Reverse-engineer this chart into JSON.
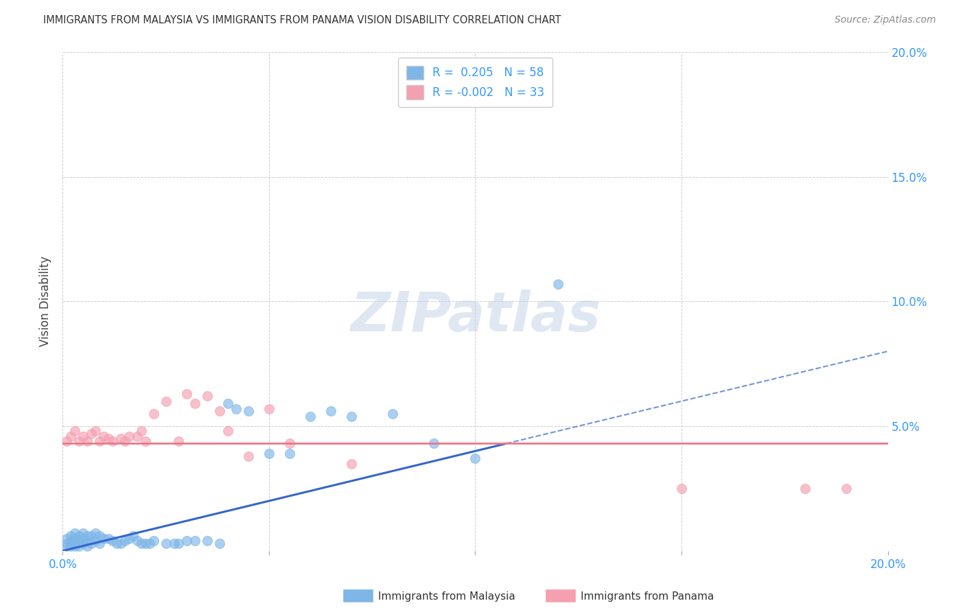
{
  "title": "IMMIGRANTS FROM MALAYSIA VS IMMIGRANTS FROM PANAMA VISION DISABILITY CORRELATION CHART",
  "source": "Source: ZipAtlas.com",
  "ylabel": "Vision Disability",
  "xlim": [
    0.0,
    0.2
  ],
  "ylim": [
    0.0,
    0.2
  ],
  "malaysia_color": "#7EB6E8",
  "panama_color": "#F4A0B0",
  "malaysia_line_color": "#3366CC",
  "panama_line_color": "#E8788A",
  "malaysia_R": 0.205,
  "malaysia_N": 58,
  "panama_R": -0.002,
  "panama_N": 33,
  "watermark_text": "ZIPatlas",
  "legend_label_1": "Immigrants from Malaysia",
  "legend_label_2": "Immigrants from Panama",
  "malaysia_line_x0": 0.0,
  "malaysia_line_y0": 0.0,
  "malaysia_line_x1": 0.2,
  "malaysia_line_y1": 0.08,
  "panama_line_y": 0.043,
  "malaysia_scatter_x": [
    0.001,
    0.001,
    0.001,
    0.002,
    0.002,
    0.002,
    0.002,
    0.003,
    0.003,
    0.003,
    0.003,
    0.004,
    0.004,
    0.004,
    0.005,
    0.005,
    0.005,
    0.006,
    0.006,
    0.006,
    0.007,
    0.007,
    0.008,
    0.008,
    0.009,
    0.009,
    0.01,
    0.011,
    0.012,
    0.013,
    0.014,
    0.015,
    0.016,
    0.017,
    0.018,
    0.019,
    0.02,
    0.021,
    0.022,
    0.025,
    0.027,
    0.028,
    0.03,
    0.032,
    0.035,
    0.038,
    0.04,
    0.042,
    0.045,
    0.05,
    0.055,
    0.06,
    0.065,
    0.07,
    0.08,
    0.09,
    0.1,
    0.12
  ],
  "malaysia_scatter_y": [
    0.005,
    0.003,
    0.002,
    0.006,
    0.004,
    0.003,
    0.002,
    0.007,
    0.005,
    0.003,
    0.002,
    0.006,
    0.004,
    0.002,
    0.007,
    0.005,
    0.003,
    0.006,
    0.004,
    0.002,
    0.006,
    0.003,
    0.007,
    0.004,
    0.006,
    0.003,
    0.005,
    0.005,
    0.004,
    0.003,
    0.003,
    0.004,
    0.005,
    0.006,
    0.004,
    0.003,
    0.003,
    0.003,
    0.004,
    0.003,
    0.003,
    0.003,
    0.004,
    0.004,
    0.004,
    0.003,
    0.059,
    0.057,
    0.056,
    0.039,
    0.039,
    0.054,
    0.056,
    0.054,
    0.055,
    0.043,
    0.037,
    0.107
  ],
  "panama_scatter_x": [
    0.001,
    0.002,
    0.003,
    0.004,
    0.005,
    0.006,
    0.007,
    0.008,
    0.009,
    0.01,
    0.011,
    0.012,
    0.014,
    0.015,
    0.016,
    0.018,
    0.019,
    0.02,
    0.022,
    0.025,
    0.028,
    0.03,
    0.032,
    0.035,
    0.038,
    0.04,
    0.045,
    0.05,
    0.055,
    0.07,
    0.15,
    0.18,
    0.19
  ],
  "panama_scatter_y": [
    0.044,
    0.046,
    0.048,
    0.044,
    0.046,
    0.044,
    0.047,
    0.048,
    0.044,
    0.046,
    0.045,
    0.044,
    0.045,
    0.044,
    0.046,
    0.046,
    0.048,
    0.044,
    0.055,
    0.06,
    0.044,
    0.063,
    0.059,
    0.062,
    0.056,
    0.048,
    0.038,
    0.057,
    0.043,
    0.035,
    0.025,
    0.025,
    0.025
  ]
}
